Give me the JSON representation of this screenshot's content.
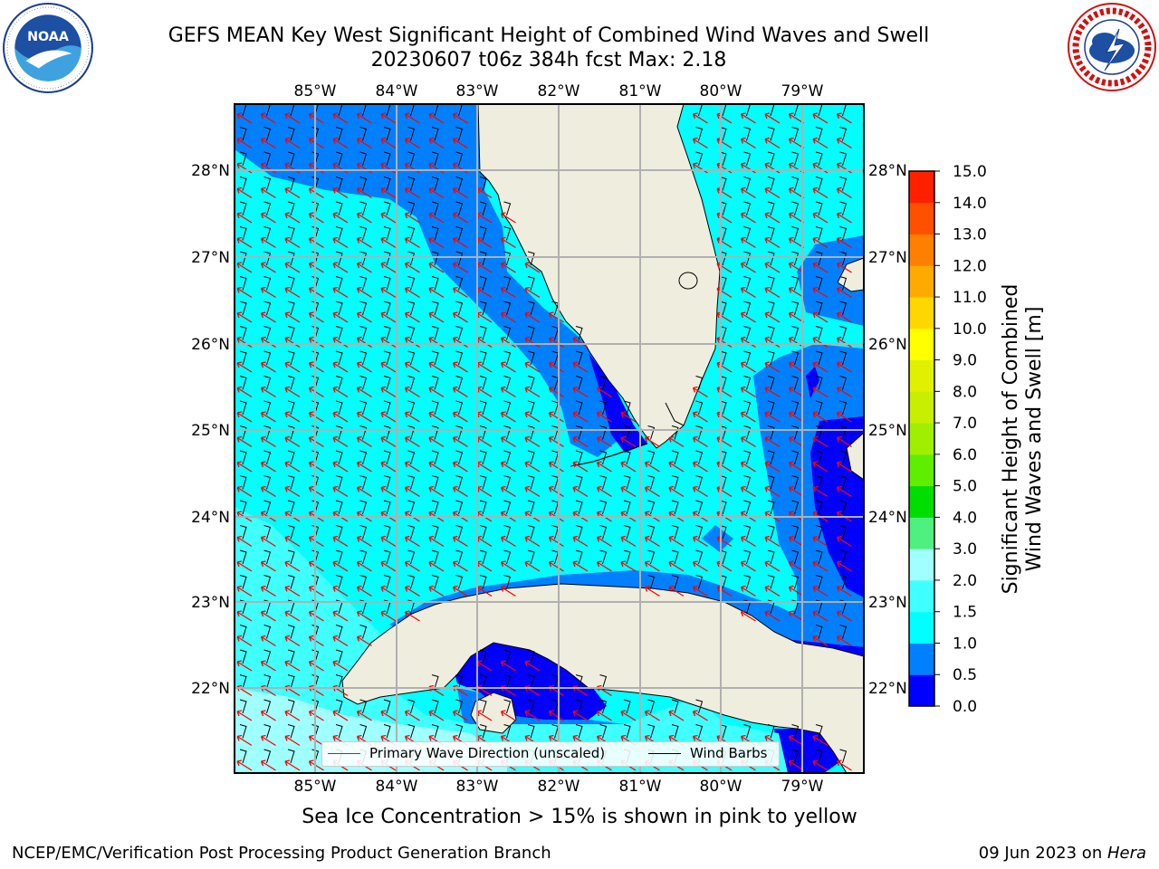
{
  "title_line1": "GEFS MEAN Key West Significant Height of Combined Wind Waves and Swell",
  "title_line2": "20230607 t06z 384h fcst   Max: 2.18",
  "footer_note": "Sea Ice Concentration > 15% is shown in pink to yellow",
  "footer_left": "NCEP/EMC/Verification Post Processing Product Generation Branch",
  "footer_right_date": "09 Jun 2023 on ",
  "footer_right_host": "Hera",
  "logos": {
    "left": "noaa-logo",
    "right": "nws-logo"
  },
  "lon_ticks": [
    "85°W",
    "84°W",
    "83°W",
    "82°W",
    "81°W",
    "80°W",
    "79°W"
  ],
  "lat_ticks": [
    "28°N",
    "27°N",
    "26°N",
    "25°N",
    "24°N",
    "23°N",
    "22°N"
  ],
  "legend": {
    "wave_label": "Primary Wave Direction (unscaled)",
    "wind_label": "Wind Barbs",
    "wave_color": "#ff0000",
    "wind_color": "#000000"
  },
  "colorbar": {
    "label_line1": "Significant Height of Combined",
    "label_line2": "Wind Waves and Swell [m]",
    "ticks": [
      "0.0",
      "0.5",
      "1.0",
      "1.5",
      "2.0",
      "3.0",
      "4.0",
      "5.0",
      "6.0",
      "7.0",
      "8.0",
      "9.0",
      "10.0",
      "11.0",
      "12.0",
      "13.0",
      "14.0",
      "15.0"
    ],
    "colors": [
      "#0000ff",
      "#0080ff",
      "#00ffff",
      "#40ffff",
      "#a0ffff",
      "#50f080",
      "#00dd00",
      "#60ee00",
      "#a0ee00",
      "#c8ee00",
      "#e0f000",
      "#ffff00",
      "#ffd700",
      "#ffaa00",
      "#ff8000",
      "#ff5000",
      "#ff2000"
    ]
  },
  "colors": {
    "land": "#efedde",
    "grid": "#b0b0b0",
    "frame": "#000000"
  },
  "chart_data": {
    "type": "map",
    "region": "Key West",
    "field": "significant height of combined wind waves and swell",
    "max": 2.18,
    "lon_range": [
      -86.0,
      -78.3
    ],
    "lat_range": [
      21.0,
      28.8
    ],
    "contour_levels_m": [
      0.0,
      0.5,
      1.0,
      1.5,
      2.0,
      3.0,
      4.0,
      5.0,
      6.0,
      7.0,
      8.0,
      9.0,
      10.0,
      11.0,
      12.0,
      13.0,
      14.0,
      15.0
    ],
    "grid": true
  }
}
